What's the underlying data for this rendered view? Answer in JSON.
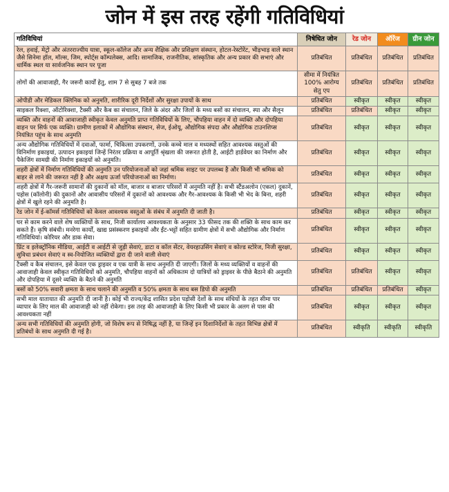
{
  "header": {
    "title": "जोन में इस तरह रहेंगी गतिविधियां"
  },
  "table": {
    "columns": [
      {
        "text": "गतिविधियां",
        "fill": "#ffffff",
        "ink": "#000000"
      },
      {
        "text": "निषेधित जोन",
        "fill": "#d9cfb8",
        "ink": "#000000"
      },
      {
        "text": "रेड जोन",
        "fill": "#f3e9da",
        "ink": "#d7261e"
      },
      {
        "text": "ऑरेंज",
        "fill": "#f28c1e",
        "ink": "#ffffff"
      },
      {
        "text": "ग्रीन जोन",
        "fill": "#3a9a3a",
        "ink": "#ffffff"
      }
    ],
    "rows": [
      {
        "activity": "रेल, हवाई, मेट्रो और अंतरराज्यीय यात्रा, स्कूल-कॉलेज और अन्य शैक्षिक और प्रशिक्षण संस्थान, होटल-रेस्टोरेंट, भीड़भाड़ वाले स्थान जैसे सिनेमा हॉल, मॉल्स, जिम, स्पोर्ट्स कॉम्पलेक्स, आदि। सामाजिक, राजनीतिक, सांस्कृतिक और अन्य प्रकार की सभाएं और धार्मिक स्थल या सार्वजनिक स्थान पर पूजा",
        "fill": "#f9d9c4",
        "cells": [
          {
            "text": "प्रतिबंधित",
            "fill": "#f9d9c4"
          },
          {
            "text": "प्रतिबंधित",
            "fill": "#f9d9c4"
          },
          {
            "text": "प्रतिबंधित",
            "fill": "#f9d9c4"
          },
          {
            "text": "प्रतिबंधित",
            "fill": "#f9d9c4"
          }
        ]
      },
      {
        "activity": "लोगों की आवाजाही, गैर जरूरी कार्यों हेतु, शाम 7 से सुबह 7 बजे तक",
        "fill": "#ffffff",
        "cells": [
          {
            "text": "सीमा में नियंत्रित 100% आरोग्य सेतु एप",
            "fill": "#f9d9c4"
          },
          {
            "text": "प्रतिबंधित",
            "fill": "#f9d9c4"
          },
          {
            "text": "प्रतिबंधित",
            "fill": "#f9d9c4"
          },
          {
            "text": "प्रतिबंधित",
            "fill": "#f9d9c4"
          }
        ]
      },
      {
        "activity": "ओपीडी और मेडिकल क्लिनिक को अनुमति, शारीरिक दूरी निर्देशों और सुरक्षा उपायों के साथ",
        "fill": "#f9d9c4",
        "cells": [
          {
            "text": "प्रतिबंधित",
            "fill": "#f9d9c4"
          },
          {
            "text": "स्वीकृत",
            "fill": "#dcedc8"
          },
          {
            "text": "स्वीकृत",
            "fill": "#dcedc8"
          },
          {
            "text": "स्वीकृत",
            "fill": "#dcedc8"
          }
        ]
      },
      {
        "activity": "साइकल रिक्शा, ऑटोरिक्शा, टैक्सी और कैब का संचालन, जिले के अंदर और जिलों के मध्य बसों का संचालन, स्पा और सैलून",
        "fill": "#ffffff",
        "cells": [
          {
            "text": "प्रतिबंधित",
            "fill": "#f9d9c4"
          },
          {
            "text": "प्रतिबंधित",
            "fill": "#f9d9c4"
          },
          {
            "text": "स्वीकृत",
            "fill": "#dcedc8"
          },
          {
            "text": "स्वीकृत",
            "fill": "#dcedc8"
          }
        ]
      },
      {
        "activity": "व्यक्ति और वाहनों की आवाजाही स्वीकृत केवल अनुमति प्राप्त गतिविधियों के लिए, चौपहिया वाहन में दो व्यक्ति और दोपहिया वाहन पर सिर्फ एक व्यक्ति। ग्रामीण इलाकों में औद्योगिक संस्थान, सेज, ईओयू, औद्योगिक संपदा और औद्योगिक टाउनशिप्स नियंत्रित पहुंच के साथ अनुमति",
        "fill": "#f9d9c4",
        "cells": [
          {
            "text": "प्रतिबंधित",
            "fill": "#f9d9c4"
          },
          {
            "text": "स्वीकृत",
            "fill": "#dcedc8"
          },
          {
            "text": "स्वीकृत",
            "fill": "#dcedc8"
          },
          {
            "text": "स्वीकृत",
            "fill": "#dcedc8"
          }
        ]
      },
      {
        "activity": "अन्य औद्योगिक गतिविधियों में दवाओं, फार्मा, चिकित्सा उपकरणों, उनके कच्चे माल व मध्यस्थों सहित आवश्यक वस्तुओं की विनिर्माण इकाइयां, उत्पादन इकाइयां जिन्हें निरंतर प्रक्रिया व आपूर्ति श्रृंखला की जरूरत होती है, आईटी हार्डवेयर का निर्माण और पैकेजिंग सामग्री की निर्माण इकाइयों को अनुमति।",
        "fill": "#ffffff",
        "cells": [
          {
            "text": "प्रतिबंधित",
            "fill": "#f9d9c4"
          },
          {
            "text": "स्वीकृत",
            "fill": "#dcedc8"
          },
          {
            "text": "स्वीकृत",
            "fill": "#dcedc8"
          },
          {
            "text": "स्वीकृत",
            "fill": "#dcedc8"
          }
        ]
      },
      {
        "activity": "शहरी क्षेत्रों में निर्माण गतिविधियों की अनुमति उन परियोजनाओं को जहां श्रमिक साइट पर उपलब्ध है और किसी भी श्रमिक को बाहर से लाने की जरूरत नहीं है और अक्षय ऊर्जा परियोजनाओं का निर्माण।",
        "fill": "#f9d9c4",
        "cells": [
          {
            "text": "प्रतिबंधित",
            "fill": "#f9d9c4"
          },
          {
            "text": "स्वीकृत",
            "fill": "#dcedc8"
          },
          {
            "text": "स्वीकृत",
            "fill": "#dcedc8"
          },
          {
            "text": "स्वीकृत",
            "fill": "#dcedc8"
          }
        ]
      },
      {
        "activity": "शहरी क्षेत्रों में गैर-जरूरी सामानों की दुकानों को मॉल, बाजार व बाजार परिसरों में अनुमति नहीं है। सभी स्टैंडअलोन (एकल) दुकानें, पड़ोस (कॉलोनी) की दुकानों और आवासीय परिसरों में दुकानों को आवश्यक और गैर-आवश्यक के किसी भी भेद के बिना, शहरी क्षेत्रों में खुले रहने की अनुमति है।",
        "fill": "#ffffff",
        "cells": [
          {
            "text": "प्रतिबंधित",
            "fill": "#f9d9c4"
          },
          {
            "text": "स्वीकृत",
            "fill": "#dcedc8"
          },
          {
            "text": "स्वीकृत",
            "fill": "#dcedc8"
          },
          {
            "text": "स्वीकृत",
            "fill": "#dcedc8"
          }
        ]
      },
      {
        "activity": "रेड जोन में ई-कॉमर्स गतिविधियों को केवल आवश्यक वस्तुओं के संबंध में अनुमति दी जाती है।",
        "fill": "#f9d9c4",
        "cells": [
          {
            "text": "प्रतिबंधित",
            "fill": "#f9d9c4"
          },
          {
            "text": "स्वीकृत",
            "fill": "#dcedc8"
          },
          {
            "text": "स्वीकृत",
            "fill": "#dcedc8"
          },
          {
            "text": "स्वीकृत",
            "fill": "#dcedc8"
          }
        ]
      },
      {
        "activity": "घर से काम करने वाले शेष व्यक्तियों के साथ, निजी कार्यालय आवश्यकता के अनुसार 33 फीसद तक की शक्ति के साथ काम कर सकते हैं। कृषि संबंधी। मनरेगा कार्यों, खाद्य प्रसंस्करण इकाइयों और ईंट-भट्टों सहित ग्रामीण क्षेत्रों में सभी औद्योगिक और निर्माण गतिविधियां। कोरियर और डाक सेवा।",
        "fill": "#ffffff",
        "cells": [
          {
            "text": "प्रतिबंधित",
            "fill": "#f9d9c4"
          },
          {
            "text": "स्वीकृत",
            "fill": "#dcedc8"
          },
          {
            "text": "स्वीकृत",
            "fill": "#dcedc8"
          },
          {
            "text": "स्वीकृत",
            "fill": "#dcedc8"
          }
        ]
      },
      {
        "activity": "प्रिंट व इलेक्ट्रॉनिक मीडिया, आईटी व आईटी से जुड़ी सेवाएं, डाटा व कॉल सेंटर, वेयरहाउसिंग सेवाएं व कोल्ड स्टोरेज, निजी सुरक्षा, सुविधा प्रबंधन सेवाएं व स्व-नियोजित व्यक्तियों द्वारा दी जाने वाली सेवाएं",
        "fill": "#f9d9c4",
        "cells": [
          {
            "text": "प्रतिबंधित",
            "fill": "#f9d9c4"
          },
          {
            "text": "स्वीकृत",
            "fill": "#dcedc8"
          },
          {
            "text": "स्वीकृत",
            "fill": "#dcedc8"
          },
          {
            "text": "स्वीकृत",
            "fill": "#dcedc8"
          }
        ]
      },
      {
        "activity": "टैक्सी व कैब संचालन, इसे केवल एक ड्राइवर व एक यात्री के साथ अनुमति दी जाएगी। जिलों के मध्य व्यक्तियों व वाहनों की आवाजाही केवल स्वीकृत गतिविधियों को अनुमति, चौपहिया वाहनों को अधिकतम दो यात्रियों को ड्राइवर के पीछे बैठाने की अनुमति और दोपहिया में दूसरे व्यक्ति के बैठने की अनुमति",
        "fill": "#ffffff",
        "cells": [
          {
            "text": "प्रतिबंधित",
            "fill": "#f9d9c4"
          },
          {
            "text": "प्रतिबंधित",
            "fill": "#f9d9c4"
          },
          {
            "text": "स्वीकृत",
            "fill": "#dcedc8"
          },
          {
            "text": "स्वीकृत",
            "fill": "#dcedc8"
          }
        ]
      },
      {
        "activity": "बसों को 50% सवारी क्षमता के साथ चलाने की अनुमति व 50% क्षमता के साथ बस डिपो की अनुमति",
        "fill": "#f9d9c4",
        "cells": [
          {
            "text": "प्रतिबंधित",
            "fill": "#f9d9c4"
          },
          {
            "text": "प्रतिबंधित",
            "fill": "#f9d9c4"
          },
          {
            "text": "प्रतिबंधित",
            "fill": "#f9d9c4"
          },
          {
            "text": "स्वीकृत",
            "fill": "#dcedc8"
          }
        ]
      },
      {
        "activity": "सभी माल यातायात की अनुमति दी जानी है। कोई भी राज्य/केंद्र शासित प्रदेश पड़ोसी देशों के साथ संधियों के तहत सीमा पार व्यापार के लिए माल की आवाजाही को नहीं रोकेगा। इस तरह की आवाजाही के लिए किसी भी प्रकार के अलग से पास की आवश्यकता नहीं",
        "fill": "#ffffff",
        "cells": [
          {
            "text": "प्रतिबंधित",
            "fill": "#f9d9c4"
          },
          {
            "text": "स्वीकृत",
            "fill": "#dcedc8"
          },
          {
            "text": "स्वीकृत",
            "fill": "#dcedc8"
          },
          {
            "text": "स्वीकृत",
            "fill": "#dcedc8"
          }
        ]
      },
      {
        "activity": "अन्य सभी गतिविधियों की अनुमति होगी, जो विशेष रूप से निषिद्ध नहीं है, या जिन्हें इन दिशानिर्देशों के तहत विभिन्न क्षेत्रों में प्रतिबंधों के साथ अनुमति दी गई है।",
        "fill": "#f9d9c4",
        "cells": [
          {
            "text": "प्रतिबंधित",
            "fill": "#f9d9c4"
          },
          {
            "text": "स्वीकृति",
            "fill": "#dcedc8"
          },
          {
            "text": "स्वीकृति",
            "fill": "#dcedc8"
          },
          {
            "text": "स्वीकृति",
            "fill": "#dcedc8"
          }
        ]
      }
    ]
  }
}
